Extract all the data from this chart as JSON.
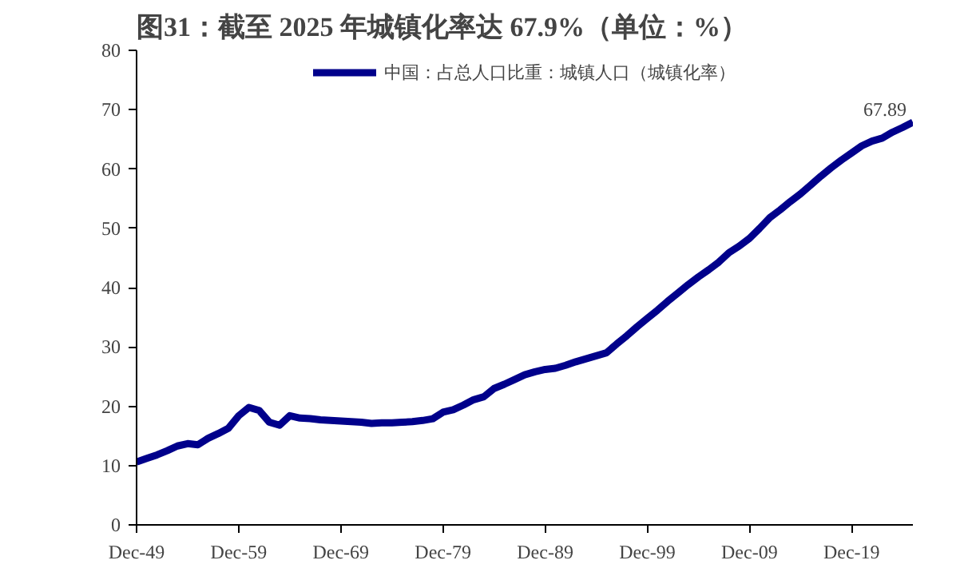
{
  "chart_data": {
    "type": "line",
    "title": "图31：截至 2025 年城镇化率达 67.9%（单位：%）",
    "x": [
      "1949-12",
      "1950-12",
      "1951-12",
      "1952-12",
      "1953-12",
      "1954-12",
      "1955-12",
      "1956-12",
      "1957-12",
      "1958-12",
      "1959-12",
      "1960-12",
      "1961-12",
      "1962-12",
      "1963-12",
      "1964-12",
      "1965-12",
      "1966-12",
      "1967-12",
      "1968-12",
      "1969-12",
      "1970-12",
      "1971-12",
      "1972-12",
      "1973-12",
      "1974-12",
      "1975-12",
      "1976-12",
      "1977-12",
      "1978-12",
      "1979-12",
      "1980-12",
      "1981-12",
      "1982-12",
      "1983-12",
      "1984-12",
      "1985-12",
      "1986-12",
      "1987-12",
      "1988-12",
      "1989-12",
      "1990-12",
      "1991-12",
      "1992-12",
      "1993-12",
      "1994-12",
      "1995-12",
      "1996-12",
      "1997-12",
      "1998-12",
      "1999-12",
      "2000-12",
      "2001-12",
      "2002-12",
      "2003-12",
      "2004-12",
      "2005-12",
      "2006-12",
      "2007-12",
      "2008-12",
      "2009-12",
      "2010-12",
      "2011-12",
      "2012-12",
      "2013-12",
      "2014-12",
      "2015-12",
      "2016-12",
      "2017-12",
      "2018-12",
      "2019-12",
      "2020-12",
      "2021-12",
      "2022-12",
      "2023-12",
      "2024-12",
      "2025-12"
    ],
    "series": [
      {
        "name": "中国：占总人口比重：城镇人口（城镇化率）",
        "color": "#00008b",
        "values": [
          10.6,
          11.2,
          11.8,
          12.5,
          13.3,
          13.7,
          13.5,
          14.6,
          15.4,
          16.3,
          18.4,
          19.8,
          19.3,
          17.3,
          16.8,
          18.4,
          18.0,
          17.9,
          17.7,
          17.6,
          17.5,
          17.4,
          17.3,
          17.1,
          17.2,
          17.2,
          17.3,
          17.4,
          17.6,
          17.9,
          19.0,
          19.4,
          20.2,
          21.1,
          21.6,
          23.0,
          23.7,
          24.5,
          25.3,
          25.8,
          26.2,
          26.4,
          26.9,
          27.5,
          28.0,
          28.5,
          29.0,
          30.5,
          31.9,
          33.4,
          34.8,
          36.2,
          37.7,
          39.1,
          40.5,
          41.8,
          43.0,
          44.3,
          45.9,
          47.0,
          48.3,
          50.0,
          51.8,
          53.1,
          54.5,
          55.8,
          57.3,
          58.8,
          60.2,
          61.5,
          62.7,
          63.9,
          64.7,
          65.2,
          66.2,
          67.0,
          67.89
        ]
      }
    ],
    "xlim": [
      "1949-12",
      "2025-12"
    ],
    "xticks": [
      {
        "value": "1949-12",
        "label": "Dec-49"
      },
      {
        "value": "1959-12",
        "label": "Dec-59"
      },
      {
        "value": "1969-12",
        "label": "Dec-69"
      },
      {
        "value": "1979-12",
        "label": "Dec-79"
      },
      {
        "value": "1989-12",
        "label": "Dec-89"
      },
      {
        "value": "1999-12",
        "label": "Dec-99"
      },
      {
        "value": "2009-12",
        "label": "Dec-09"
      },
      {
        "value": "2019-12",
        "label": "Dec-19"
      }
    ],
    "ylim": [
      0,
      80
    ],
    "yticks": [
      0,
      10,
      20,
      30,
      40,
      50,
      60,
      70,
      80
    ],
    "annotations": [
      {
        "text": "67.89",
        "x": "2025-12",
        "y": 67.89
      }
    ],
    "legend": "top",
    "grid": false,
    "marker": "none",
    "line_style": "solid"
  }
}
